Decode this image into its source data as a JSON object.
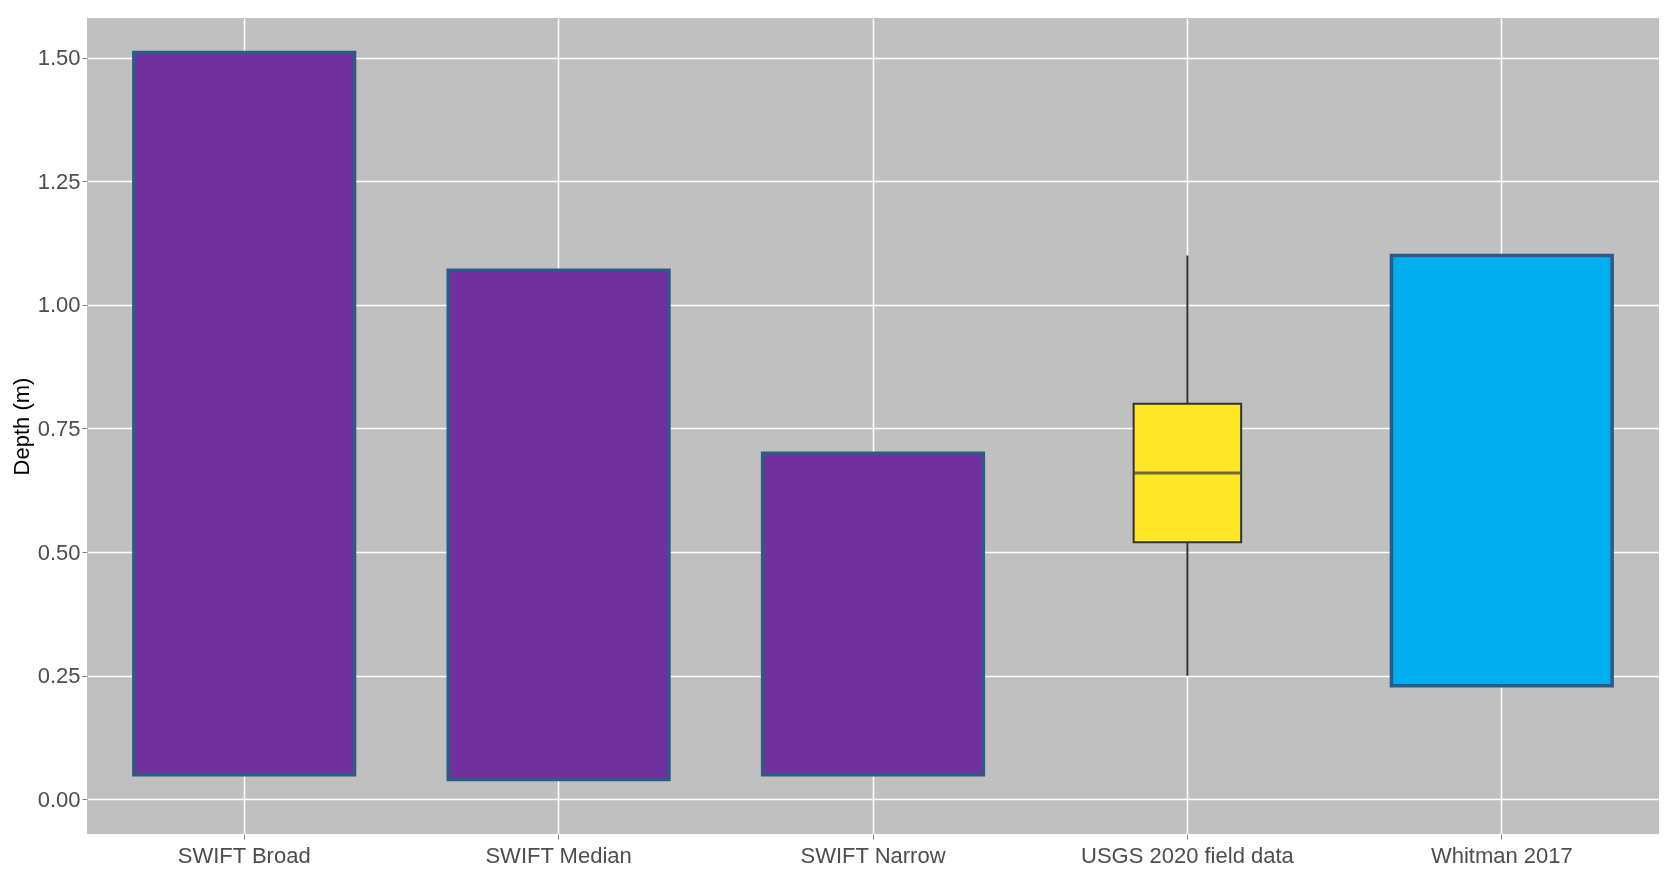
{
  "chart_data": {
    "type": "bar",
    "ylabel": "Depth (m)",
    "categories": [
      "SWIFT Broad",
      "SWIFT Median",
      "SWIFT Narrow",
      "USGS 2020 field data",
      "Whitman 2017"
    ],
    "series": [
      {
        "colors": [
          "#70309e",
          "#70309e",
          "#70309e",
          null,
          "#00aeef"
        ],
        "base": [
          0.05,
          0.04,
          0.05,
          null,
          0.23
        ],
        "values": [
          1.46,
          1.03,
          0.65,
          null,
          0.87
        ]
      },
      {
        "type": "box",
        "color": "#ffe629",
        "boxes": [
          null,
          null,
          null,
          {
            "low": 0.25,
            "q1": 0.52,
            "median": 0.66,
            "q3": 0.8,
            "high": 1.1
          },
          null
        ]
      }
    ],
    "ylim": [
      -0.07,
      1.58
    ],
    "yticks": [
      {
        "value": 0,
        "label": "0.00"
      },
      {
        "value": 0.25,
        "label": "0.25"
      },
      {
        "value": 0.5,
        "label": "0.50"
      },
      {
        "value": 0.75,
        "label": "0.75"
      },
      {
        "value": 1,
        "label": "1.00"
      },
      {
        "value": 1.25,
        "label": "1.25"
      },
      {
        "value": 1.5,
        "label": "1.50"
      }
    ],
    "grid": true
  }
}
